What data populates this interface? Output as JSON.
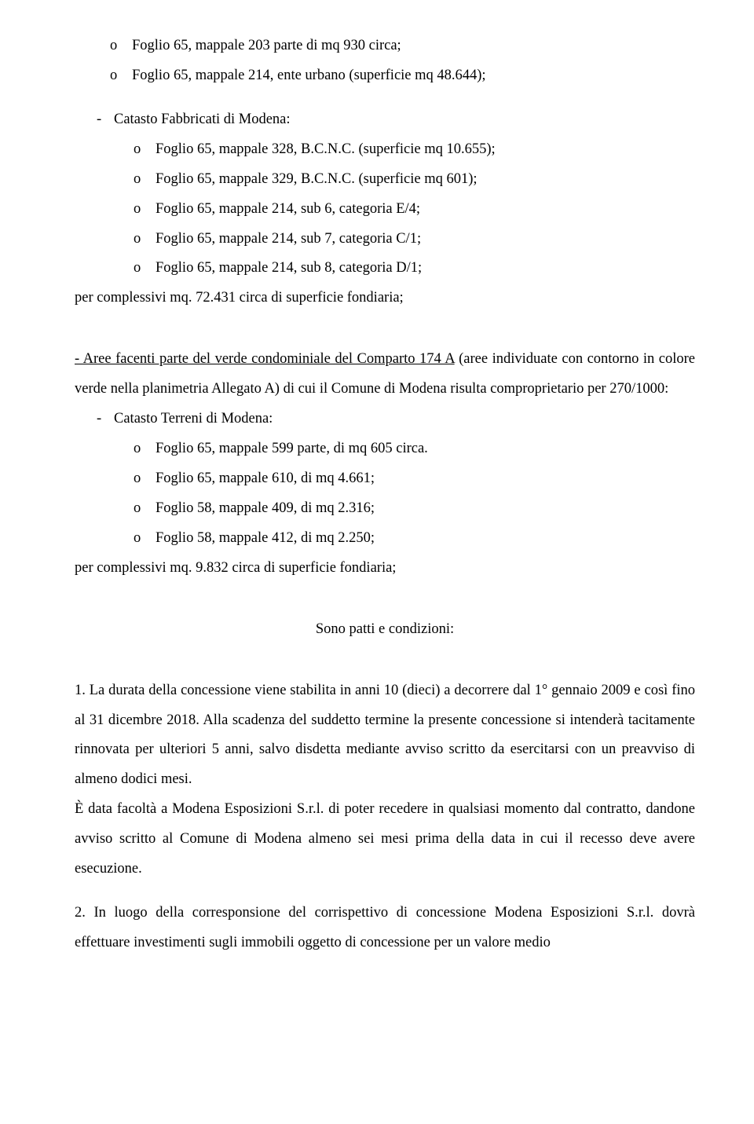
{
  "list1": {
    "i1": "Foglio 65, mappale 203 parte di mq 930 circa;",
    "i2": "Foglio 65, mappale 214, ente urbano (superficie  mq 48.644);"
  },
  "section_cf": "Catasto Fabbricati di Modena:",
  "list2": {
    "i1": "Foglio 65, mappale 328, B.C.N.C. (superficie  mq 10.655);",
    "i2": "Foglio 65, mappale 329, B.C.N.C. (superficie  mq 601);",
    "i3": "Foglio 65, mappale 214, sub 6, categoria  E/4;",
    "i4": "Foglio 65, mappale 214, sub 7, categoria  C/1;",
    "i5": "Foglio 65, mappale 214, sub 8, categoria  D/1;"
  },
  "complessivi1": "per complessivi mq. 72.431 circa di superficie fondiaria;",
  "aree_lead": " -  Aree facenti parte del verde condominiale del Comparto 174 A",
  "aree_rest": " (aree individuate con contorno in colore verde nella planimetria Allegato A) di cui il Comune di Modena risulta comproprietario per 270/1000:",
  "section_ct": "Catasto Terreni di Modena:",
  "list3": {
    "i1": "Foglio 65, mappale 599 parte, di mq 605 circa.",
    "i2": "Foglio 65, mappale 610, di mq 4.661;",
    "i3": "Foglio 58, mappale 409, di mq  2.316;",
    "i4": "Foglio 58, mappale 412, di mq  2.250;"
  },
  "complessivi2": "per complessivi mq. 9.832 circa di superficie fondiaria;",
  "patti_heading": "Sono patti e condizioni:",
  "para1": "1. La durata della concessione viene stabilita in anni 10 (dieci) a decorrere dal 1° gennaio 2009 e così fino al 31 dicembre 2018. Alla scadenza del suddetto termine la presente concessione si intenderà tacitamente rinnovata per ulteriori 5 anni, salvo disdetta mediante avviso scritto da esercitarsi con un preavviso di almeno dodici mesi.",
  "para2": "È data facoltà a Modena Esposizioni S.r.l. di poter recedere in qualsiasi momento dal contratto, dandone avviso scritto al Comune di Modena almeno sei mesi prima della data in cui il recesso deve avere esecuzione.",
  "para3": "2. In luogo della corresponsione del corrispettivo di concessione Modena Esposizioni S.r.l. dovrà effettuare investimenti sugli immobili oggetto di concessione per un valore medio",
  "bullet_o": "o",
  "bullet_dash": "-"
}
